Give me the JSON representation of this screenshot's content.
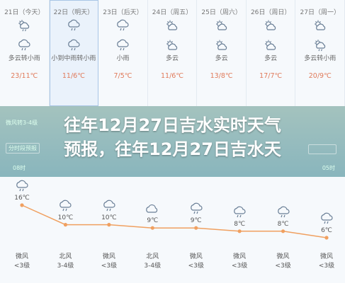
{
  "daily": [
    {
      "date": "21日（今天）",
      "icon": "partly-cloudy-rain-icon",
      "icon2": "rain-icon",
      "condition": "多云转小雨",
      "temp": "23/11℃",
      "selected": false
    },
    {
      "date": "22日（明天）",
      "icon": "rain-icon",
      "icon2": "rain-icon",
      "condition": "小到中雨转小雨",
      "temp": "11/6℃",
      "selected": true
    },
    {
      "date": "23日（后天）",
      "icon": "rain-icon",
      "icon2": "rain-icon",
      "condition": "小雨",
      "temp": "7/5℃",
      "selected": false
    },
    {
      "date": "24日（周五）",
      "icon": "partly-cloudy-icon",
      "icon2": "partly-cloudy-icon",
      "condition": "多云",
      "temp": "11/6℃",
      "selected": false
    },
    {
      "date": "25日（周六）",
      "icon": "partly-cloudy-icon",
      "icon2": "partly-cloudy-icon",
      "condition": "多云",
      "temp": "13/8℃",
      "selected": false
    },
    {
      "date": "26日（周日）",
      "icon": "partly-cloudy-icon",
      "icon2": "partly-cloudy-icon",
      "condition": "多云",
      "temp": "17/7℃",
      "selected": false
    },
    {
      "date": "27日（周一）",
      "icon": "partly-cloudy-icon",
      "icon2": "partly-cloudy-rain-icon",
      "condition": "多云转小雨",
      "temp": "20/9℃",
      "selected": false
    }
  ],
  "overlay": {
    "faint_label_1": "微风转3-4级",
    "faint_label_2": "分时段预报",
    "faint_time_start": "08时",
    "faint_time_end": "05时"
  },
  "headline": {
    "line1": "往年12月27日吉水实时天气",
    "line2": "预报，往年12月27日吉水天"
  },
  "hourly": [
    {
      "icon": "rain-icon",
      "temp": "16℃",
      "temp_value": 16,
      "wind": "微风",
      "level": "<3级"
    },
    {
      "icon": "rain-icon",
      "temp": "10℃",
      "temp_value": 10,
      "wind": "北风",
      "level": "3-4级"
    },
    {
      "icon": "rain-icon",
      "temp": "10℃",
      "temp_value": 10,
      "wind": "微风",
      "level": "<3级"
    },
    {
      "icon": "cloudy-icon",
      "temp": "9℃",
      "temp_value": 9,
      "wind": "北风",
      "level": "3-4级"
    },
    {
      "icon": "rain-icon",
      "temp": "9℃",
      "temp_value": 9,
      "wind": "微风",
      "level": "<3级"
    },
    {
      "icon": "rain-icon",
      "temp": "8℃",
      "temp_value": 8,
      "wind": "微风",
      "level": "<3级"
    },
    {
      "icon": "rain-icon",
      "temp": "8℃",
      "temp_value": 8,
      "wind": "微风",
      "level": "<3级"
    },
    {
      "icon": "rain-icon",
      "temp": "6℃",
      "temp_value": 6,
      "wind": "微风",
      "level": "<3级"
    }
  ],
  "colors": {
    "temp_line": "#f0a060",
    "temp_text": "#e07a5a",
    "overlay": "#5f9690",
    "icon_stroke": "#6a7f96"
  }
}
